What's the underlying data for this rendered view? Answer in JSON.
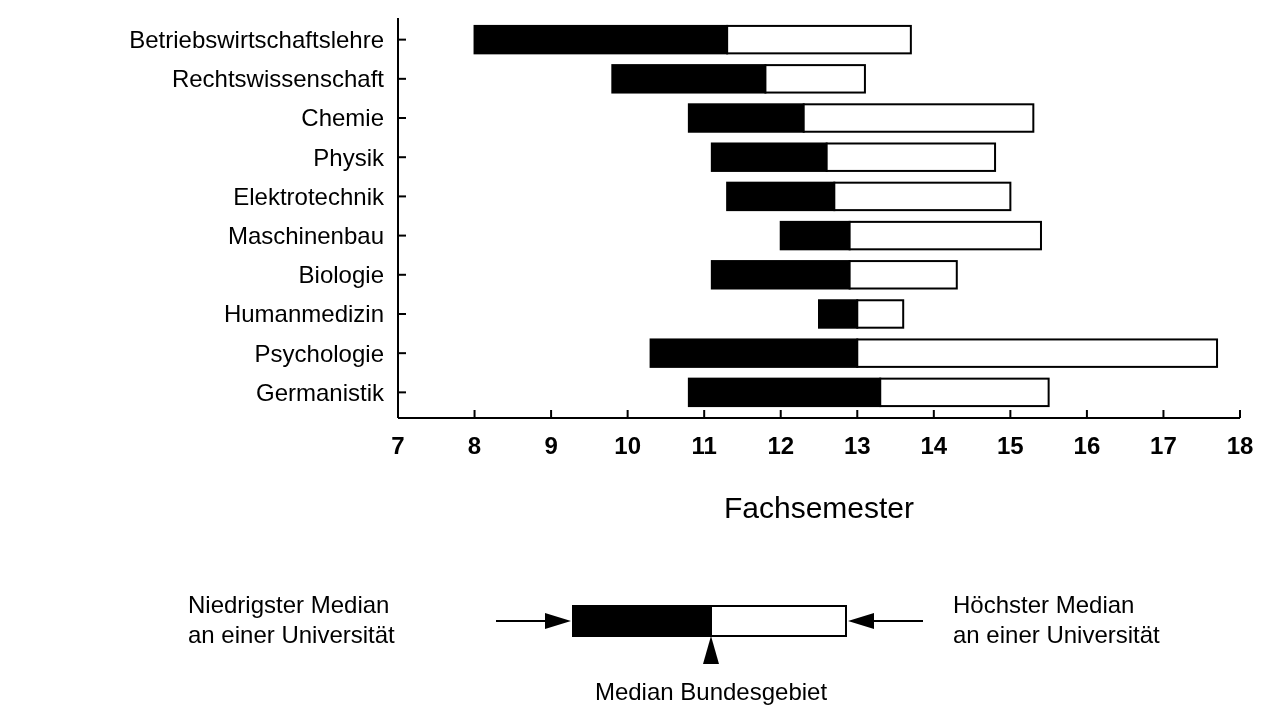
{
  "chart_data": {
    "type": "bar",
    "orientation": "horizontal",
    "xlabel": "Fachsemester",
    "categories": [
      "Betriebswirtschaftslehre",
      "Rechtswissenschaft",
      "Chemie",
      "Physik",
      "Elektrotechnik",
      "Maschinenbau",
      "Biologie",
      "Humanmedizin",
      "Psychologie",
      "Germanistik"
    ],
    "series": [
      {
        "color": "#000000",
        "base": [
          8.0,
          9.8,
          10.8,
          11.1,
          11.3,
          12.0,
          11.1,
          12.5,
          10.3,
          10.8
        ],
        "values": [
          3.3,
          2.0,
          1.5,
          1.5,
          1.4,
          0.9,
          1.8,
          0.5,
          2.7,
          2.5
        ]
      },
      {
        "color": "#ffffff",
        "base": [
          11.3,
          11.8,
          12.3,
          12.6,
          12.7,
          12.9,
          12.9,
          13.0,
          13.0,
          13.3
        ],
        "values": [
          2.4,
          1.3,
          3.0,
          2.2,
          2.3,
          2.5,
          1.4,
          0.6,
          4.7,
          2.2
        ]
      }
    ],
    "xlim": [
      7,
      18
    ],
    "xticks": [
      7,
      8,
      9,
      10,
      11,
      12,
      13,
      14,
      15,
      16,
      17,
      18
    ],
    "annotations": [
      "Niedrigster Median\nan einer Universität",
      "Höchster Median\nan einer Universität",
      "Median Bundesgebiet"
    ]
  }
}
